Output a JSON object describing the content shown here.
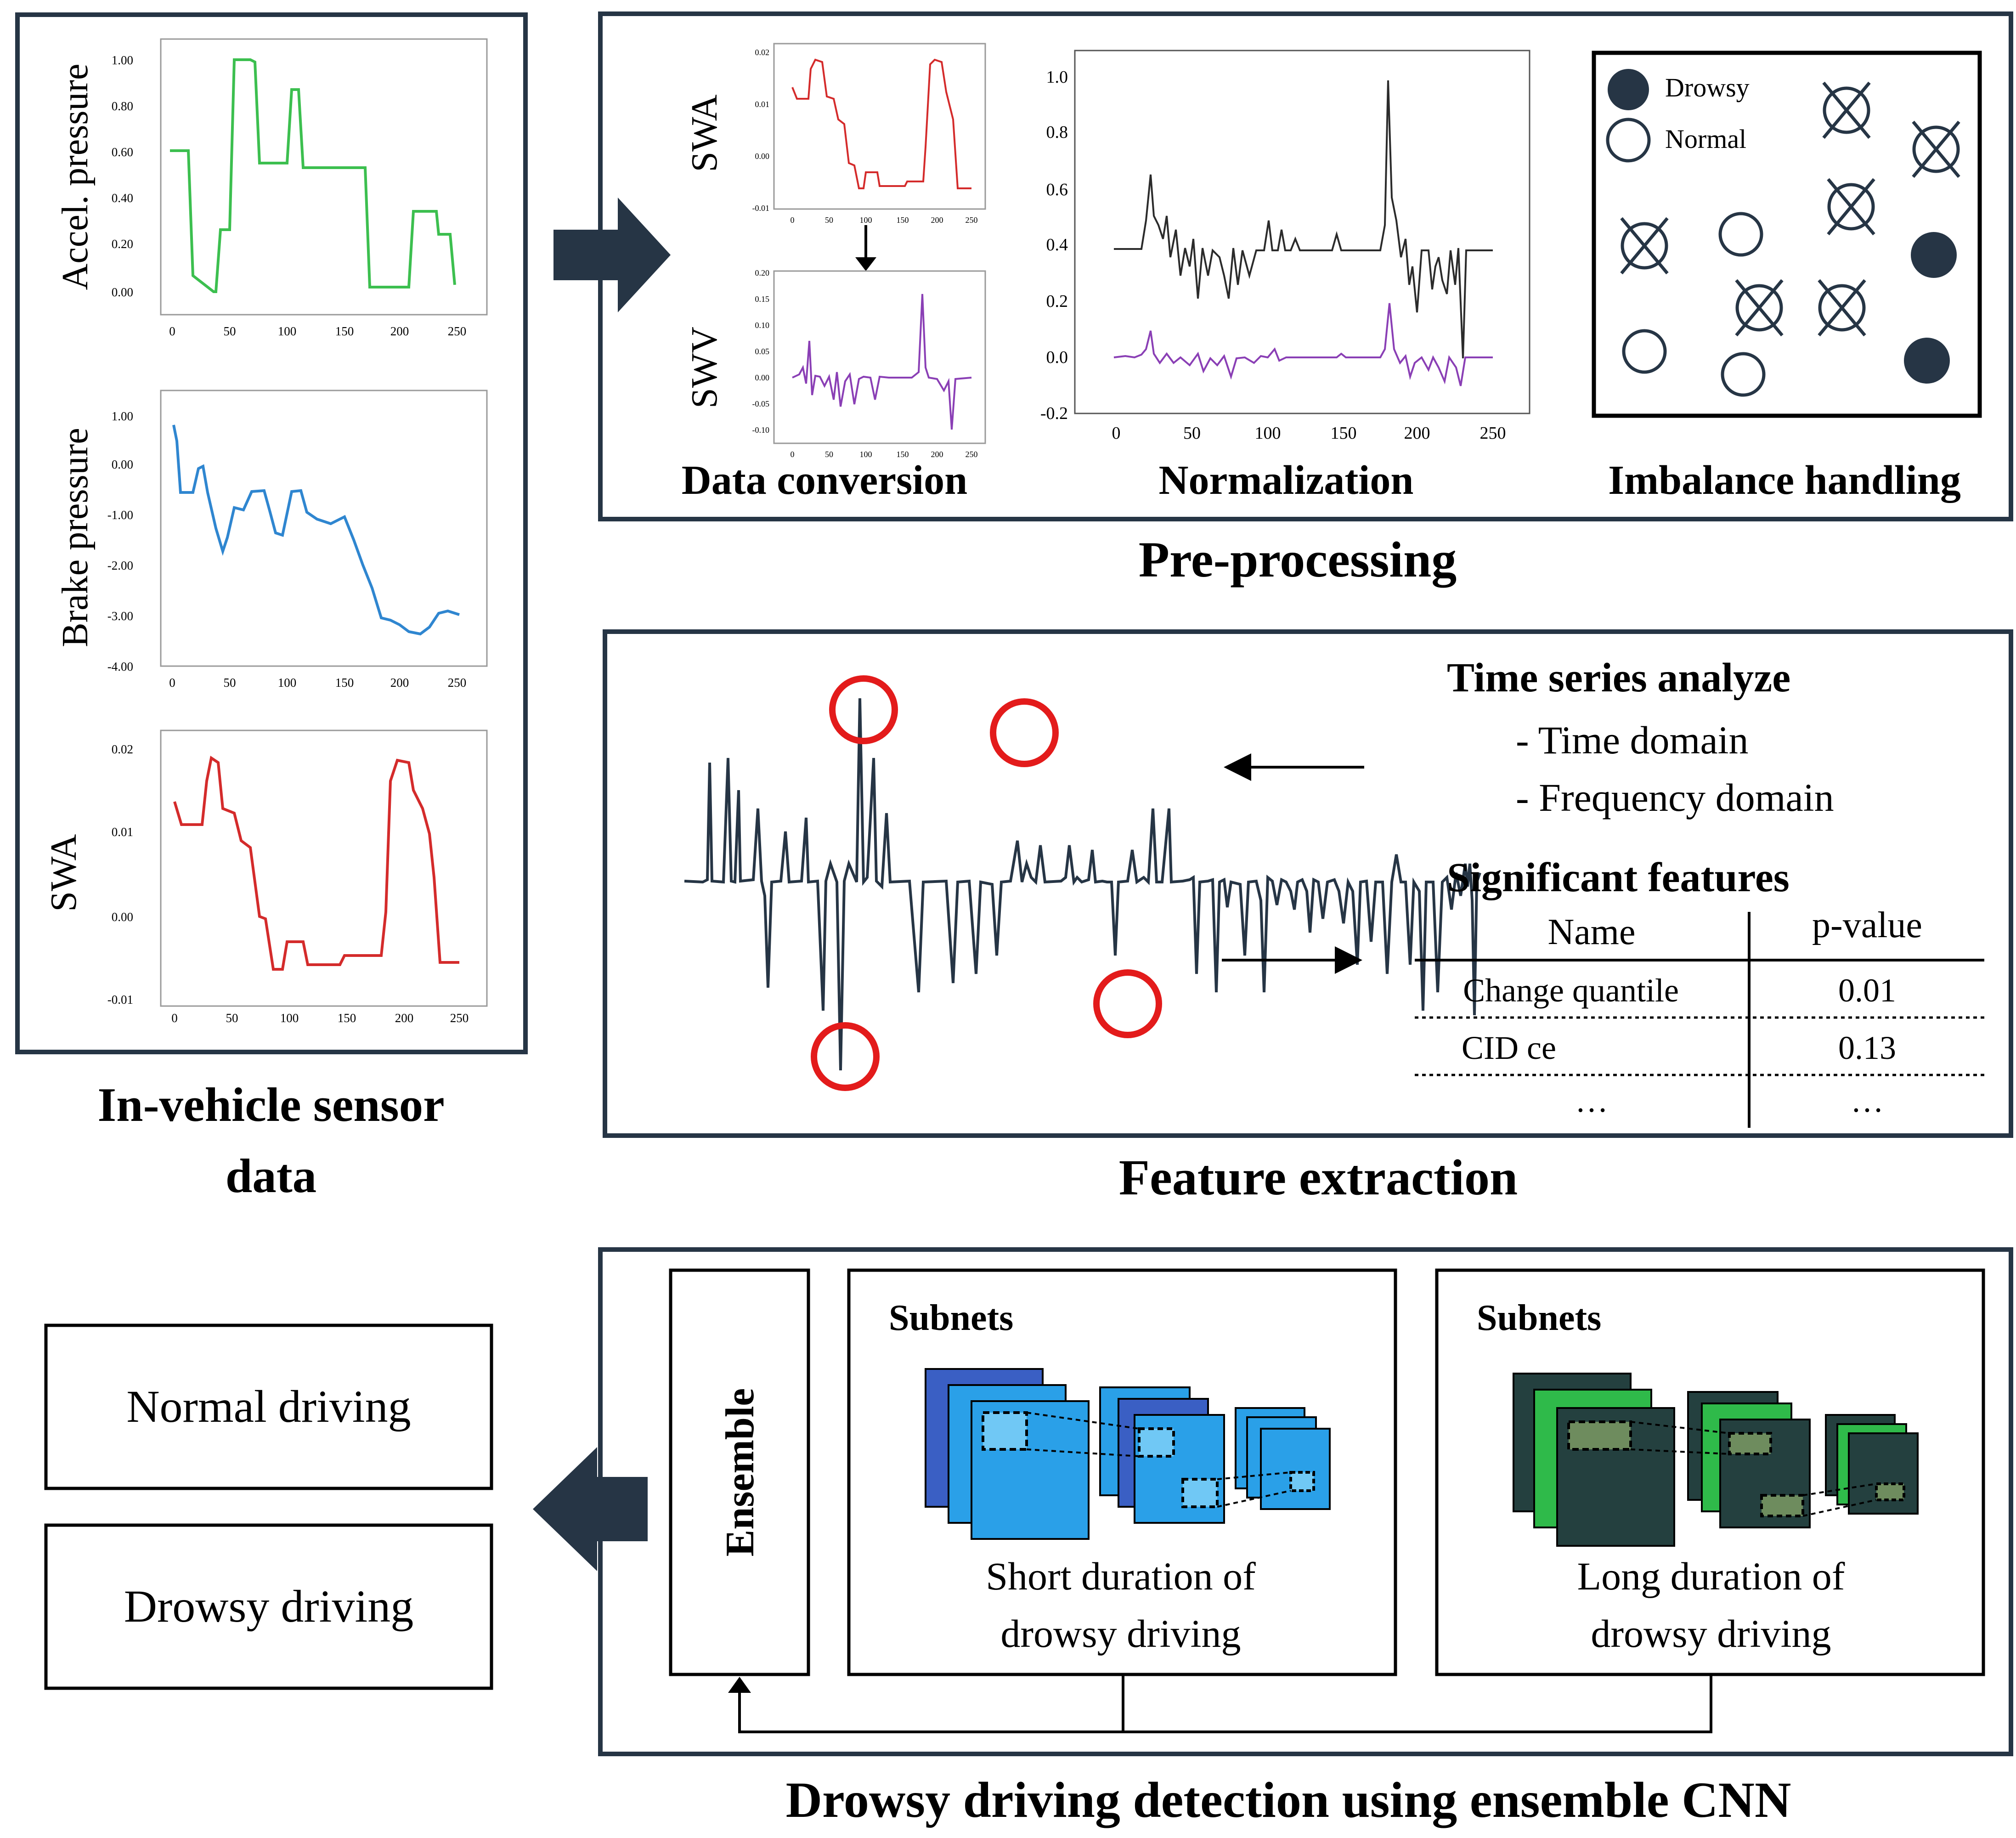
{
  "colors": {
    "frame": "#263545",
    "green": "#3cbf4f",
    "blue": "#2f86d0",
    "red": "#d42b2b",
    "purple": "#8a3fb5",
    "dark": "#2b2b2b",
    "circle_red": "#e31b1b",
    "cnn_blue_dark": "#3a5fc4",
    "cnn_blue": "#2aa0e8",
    "cnn_green": "#2fba4a",
    "cnn_teal": "#24403f",
    "cnn_olive": "#6e8c5e"
  },
  "sensor_panel": {
    "caption_line1": "In-vehicle sensor",
    "caption_line2": "data",
    "charts": [
      {
        "ylabel": "Accel. pressure",
        "yticks": [
          "1.00",
          "0.80",
          "0.60",
          "0.40",
          "0.20",
          "0.00"
        ],
        "xticks": [
          "0",
          "50",
          "100",
          "150",
          "200",
          "250"
        ]
      },
      {
        "ylabel": "Brake pressure",
        "yticks": [
          "1.00",
          "0.00",
          "-1.00",
          "-2.00",
          "-3.00",
          "-4.00"
        ],
        "xticks": [
          "0",
          "50",
          "100",
          "150",
          "200",
          "250"
        ]
      },
      {
        "ylabel": "SWA",
        "yticks": [
          "0.02",
          "0.01",
          "0.00",
          "-0.01"
        ],
        "xticks": [
          "0",
          "50",
          "100",
          "150",
          "200",
          "250"
        ]
      }
    ]
  },
  "preprocessing": {
    "title": "Pre-processing",
    "data_conversion": {
      "caption": "Data conversion",
      "top_label": "SWA",
      "bottom_label": "SWV",
      "top_yticks": [
        "0.02",
        "0.01",
        "0.00",
        "-0.01"
      ],
      "bottom_yticks": [
        "0.20",
        "0.15",
        "0.10",
        "0.05",
        "0.00",
        "-0.05",
        "-0.10"
      ],
      "xticks": [
        "0",
        "50",
        "100",
        "150",
        "200",
        "250"
      ]
    },
    "normalization": {
      "caption": "Normalization",
      "yticks": [
        "1.0",
        "0.8",
        "0.6",
        "0.4",
        "0.2",
        "0.0",
        "-0.2"
      ],
      "xticks": [
        "0",
        "50",
        "100",
        "150",
        "200",
        "250"
      ]
    },
    "imbalance": {
      "caption": "Imbalance handling",
      "legend_drowsy": "Drowsy",
      "legend_normal": "Normal"
    }
  },
  "feature_extraction": {
    "title": "Feature extraction",
    "time_series_heading": "Time series analyze",
    "time_domain": "- Time domain",
    "frequency_domain": "- Frequency domain",
    "significant_heading": "Significant features",
    "table": {
      "headers": [
        "Name",
        "p-value"
      ],
      "rows": [
        [
          "Change quantile",
          "0.01"
        ],
        [
          "CID ce",
          "0.13"
        ],
        [
          "…",
          "…"
        ]
      ]
    }
  },
  "detection": {
    "title": "Drowsy driving detection using ensemble CNN",
    "ensemble_label": "Ensemble",
    "short_subnet": {
      "heading": "Subnets",
      "line1": "Short duration of",
      "line2": "drowsy driving"
    },
    "long_subnet": {
      "heading": "Subnets",
      "line1": "Long duration of",
      "line2": "drowsy driving"
    }
  },
  "outputs": {
    "normal": "Normal driving",
    "drowsy": "Drowsy driving"
  }
}
